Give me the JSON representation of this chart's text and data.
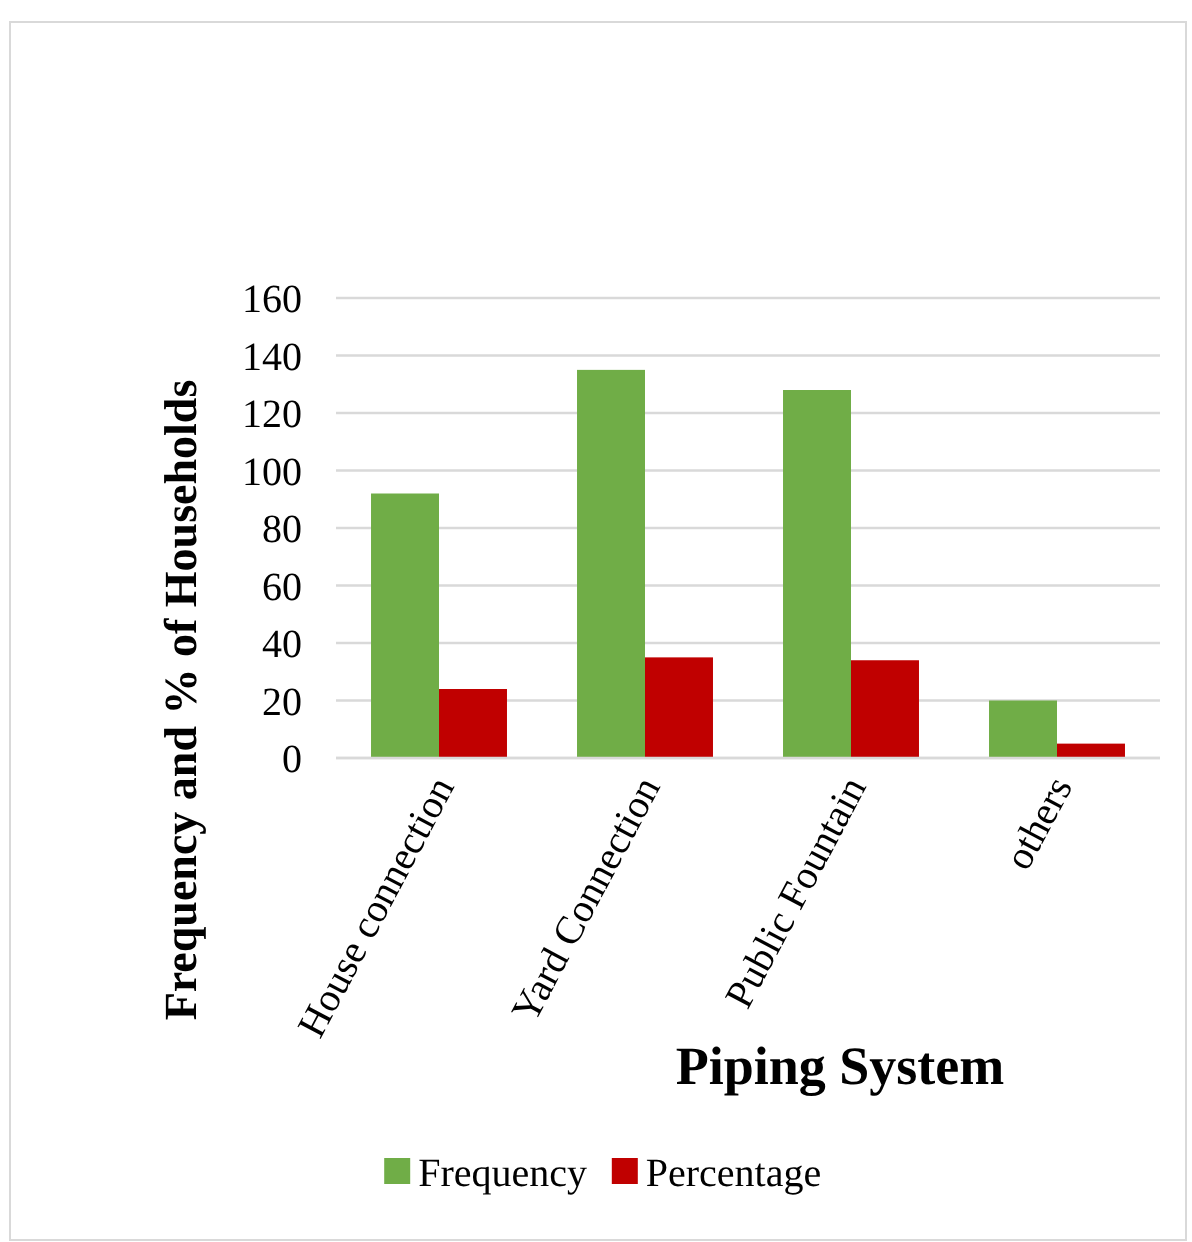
{
  "chart_data": {
    "type": "bar",
    "xlabel": "Piping System",
    "ylabel": "Frequency and % of Households",
    "categories": [
      "House connection",
      "Yard Connection",
      "Public Fountain",
      "others"
    ],
    "series": [
      {
        "name": "Frequency",
        "color": "#70ad47",
        "values": [
          92,
          135,
          128,
          20
        ]
      },
      {
        "name": "Percentage",
        "color": "#c00000",
        "values": [
          24,
          35,
          34,
          5
        ]
      }
    ],
    "ylim": [
      0,
      160
    ],
    "yticks": [
      0,
      20,
      40,
      60,
      80,
      100,
      120,
      140,
      160
    ],
    "grid": "y",
    "legend": "bottom"
  }
}
